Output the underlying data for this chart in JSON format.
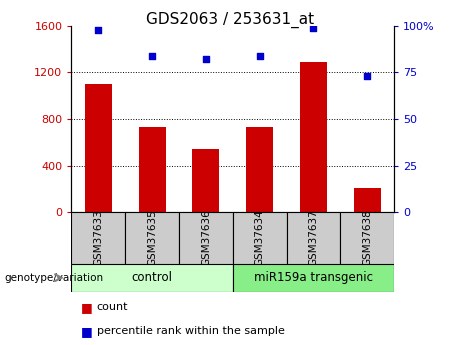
{
  "title": "GDS2063 / 253631_at",
  "categories": [
    "GSM37633",
    "GSM37635",
    "GSM37636",
    "GSM37634",
    "GSM37637",
    "GSM37638"
  ],
  "bar_values": [
    1100,
    730,
    540,
    730,
    1290,
    210
  ],
  "dot_values": [
    98,
    84,
    82,
    84,
    99,
    73
  ],
  "bar_color": "#cc0000",
  "dot_color": "#0000cc",
  "ylim_left": [
    0,
    1600
  ],
  "ylim_right": [
    0,
    100
  ],
  "yticks_left": [
    0,
    400,
    800,
    1200,
    1600
  ],
  "yticks_right": [
    0,
    25,
    50,
    75,
    100
  ],
  "yticklabels_right": [
    "0",
    "25",
    "50",
    "75",
    "100%"
  ],
  "grid_values": [
    400,
    800,
    1200
  ],
  "group1_label": "control",
  "group2_label": "miR159a transgenic",
  "group1_indices": [
    0,
    1,
    2
  ],
  "group2_indices": [
    3,
    4,
    5
  ],
  "group1_color": "#ccffcc",
  "group2_color": "#88ee88",
  "xlabel_group": "genotype/variation",
  "legend_count": "count",
  "legend_percentile": "percentile rank within the sample",
  "tick_area_color": "#cccccc",
  "title_fontsize": 11,
  "tick_fontsize": 8,
  "label_fontsize": 8
}
